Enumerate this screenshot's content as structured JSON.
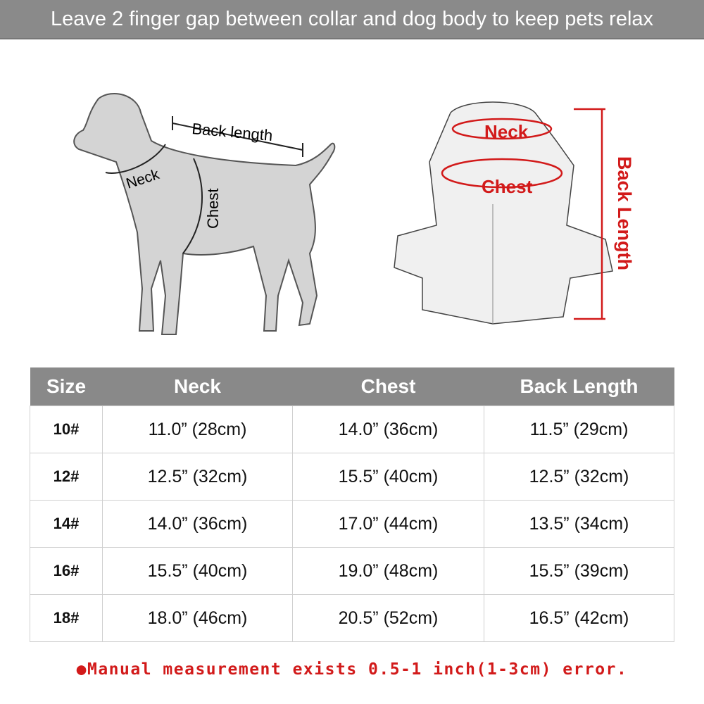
{
  "banner": "Leave 2 finger gap between collar and dog body to keep pets relax",
  "dog_labels": {
    "back": "Back length",
    "neck": "Neck",
    "chest": "Chest"
  },
  "coat_labels": {
    "neck": "Neck",
    "chest": "Chest",
    "back": "Back Length"
  },
  "colors": {
    "banner": "#8a8a8a",
    "accent": "#d21a1a"
  },
  "table": {
    "headers": [
      "Size",
      "Neck",
      "Chest",
      "Back Length"
    ],
    "rows": [
      [
        "10#",
        "11.0” (28cm)",
        "14.0” (36cm)",
        "11.5” (29cm)"
      ],
      [
        "12#",
        "12.5” (32cm)",
        "15.5” (40cm)",
        "12.5” (32cm)"
      ],
      [
        "14#",
        "14.0” (36cm)",
        "17.0” (44cm)",
        "13.5” (34cm)"
      ],
      [
        "16#",
        "15.5” (40cm)",
        "19.0” (48cm)",
        "15.5” (39cm)"
      ],
      [
        "18#",
        "18.0” (46cm)",
        "20.5” (52cm)",
        "16.5” (42cm)"
      ]
    ]
  },
  "note": "●Manual measurement exists 0.5-1 inch(1-3cm) error."
}
